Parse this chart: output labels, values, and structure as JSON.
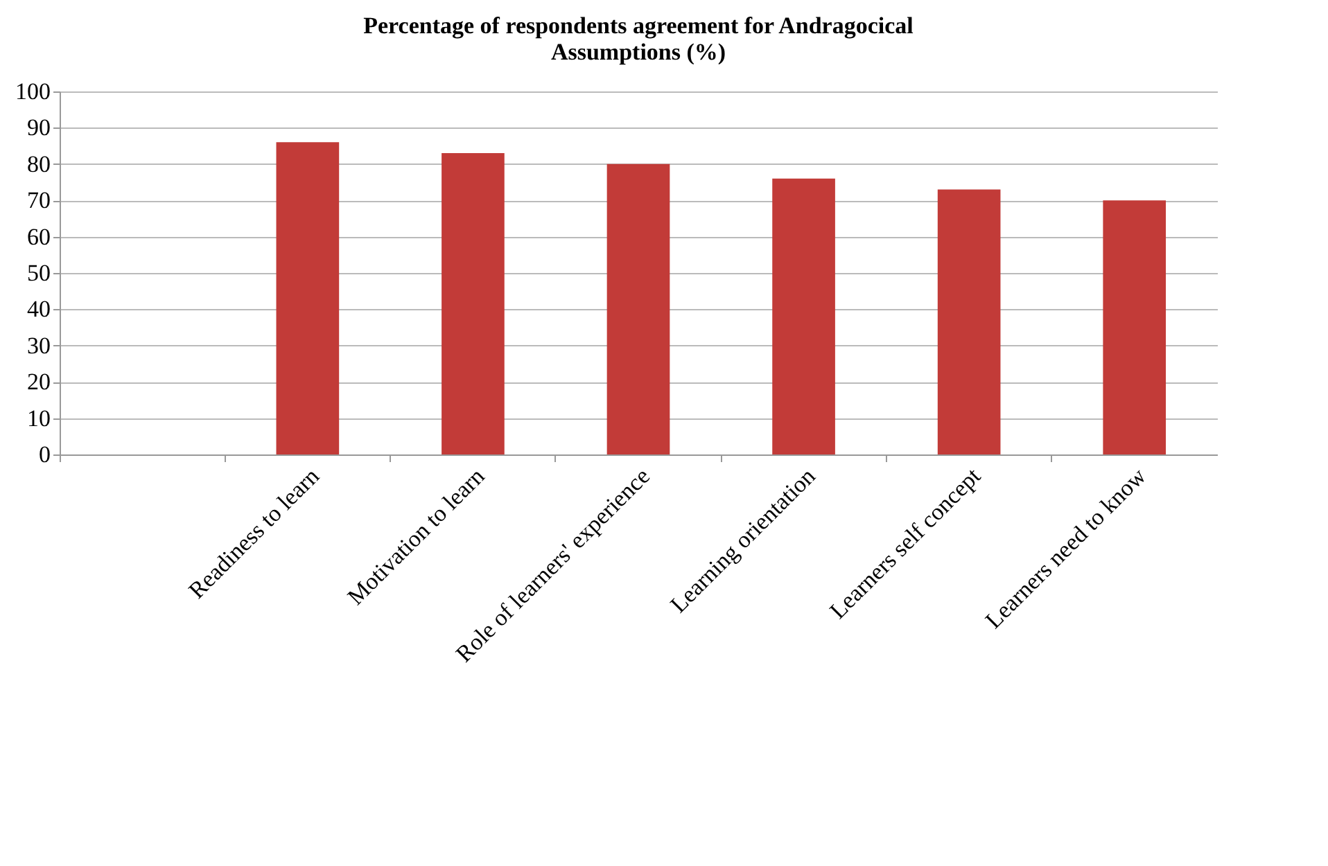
{
  "chart_data": {
    "type": "bar",
    "title": "Percentage of respondents agreement for Andragocical Assumptions (%)",
    "categories": [
      null,
      "Readiness to learn",
      "Motivation to learn",
      "Role of learners' experience",
      "Learning orientation",
      "Learners self concept",
      "Learners need to know"
    ],
    "values": [
      null,
      86,
      83,
      80,
      76,
      73,
      70
    ],
    "color": "#c23b38",
    "ylim": [
      0,
      100
    ],
    "yticks": [
      0,
      10,
      20,
      30,
      40,
      50,
      60,
      70,
      80,
      90,
      100
    ],
    "grid": "y"
  }
}
